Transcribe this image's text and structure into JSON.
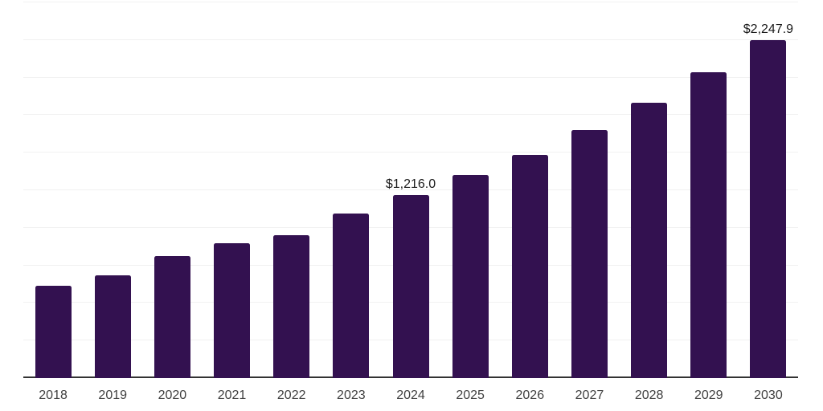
{
  "chart_data": {
    "type": "bar",
    "title": "",
    "xlabel": "",
    "ylabel": "",
    "categories": [
      "2018",
      "2019",
      "2020",
      "2021",
      "2022",
      "2023",
      "2024",
      "2025",
      "2026",
      "2027",
      "2028",
      "2029",
      "2030"
    ],
    "values": [
      615,
      685,
      810,
      895,
      950,
      1095,
      1216.0,
      1353,
      1487,
      1652,
      1831,
      2035,
      2247.9
    ],
    "data_labels": [
      "",
      "",
      "",
      "",
      "",
      "",
      "$1,216.0",
      "",
      "",
      "",
      "",
      "",
      "$2,247.9"
    ],
    "ylim": [
      0,
      2500
    ],
    "gridline_step": 250,
    "grid": true,
    "legend": false,
    "colors": {
      "bar": "#331150",
      "axis": "#333333",
      "gridline": "#F1F1F1",
      "tick_label": "#404040",
      "data_label": "#1A1A1A",
      "background": "#FFFFFF"
    }
  }
}
